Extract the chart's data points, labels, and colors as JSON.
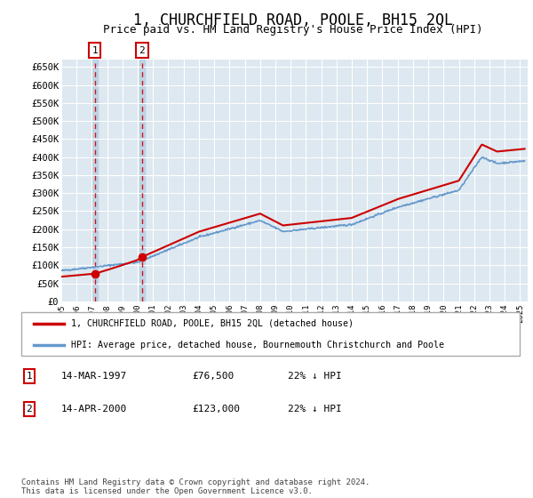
{
  "title": "1, CHURCHFIELD ROAD, POOLE, BH15 2QL",
  "subtitle": "Price paid vs. HM Land Registry's House Price Index (HPI)",
  "title_fontsize": 12,
  "subtitle_fontsize": 9,
  "ylim": [
    0,
    670000
  ],
  "yticks": [
    0,
    50000,
    100000,
    150000,
    200000,
    250000,
    300000,
    350000,
    400000,
    450000,
    500000,
    550000,
    600000,
    650000
  ],
  "ytick_labels": [
    "£0",
    "£50K",
    "£100K",
    "£150K",
    "£200K",
    "£250K",
    "£300K",
    "£350K",
    "£400K",
    "£450K",
    "£500K",
    "£550K",
    "£600K",
    "£650K"
  ],
  "xtick_years": [
    1995,
    1996,
    1997,
    1998,
    1999,
    2000,
    2001,
    2002,
    2003,
    2004,
    2005,
    2006,
    2007,
    2008,
    2009,
    2010,
    2011,
    2012,
    2013,
    2014,
    2015,
    2016,
    2017,
    2018,
    2019,
    2020,
    2021,
    2022,
    2023,
    2024,
    2025
  ],
  "sale1_x": 1997.19,
  "sale1_y": 76500,
  "sale1_label": "1",
  "sale1_date": "14-MAR-1997",
  "sale1_price": "£76,500",
  "sale1_hpi": "22% ↓ HPI",
  "sale2_x": 2000.28,
  "sale2_y": 123000,
  "sale2_label": "2",
  "sale2_date": "14-APR-2000",
  "sale2_price": "£123,000",
  "sale2_hpi": "22% ↓ HPI",
  "red_line_color": "#cc0000",
  "blue_line_color": "#6699cc",
  "bg_plot_color": "#dde8f0",
  "grid_color": "#ffffff",
  "vline_color": "#cc0000",
  "vline_shade_color": "#aac4dd",
  "legend_entry1": "1, CHURCHFIELD ROAD, POOLE, BH15 2QL (detached house)",
  "legend_entry2": "HPI: Average price, detached house, Bournemouth Christchurch and Poole",
  "footer": "Contains HM Land Registry data © Crown copyright and database right 2024.\nThis data is licensed under the Open Government Licence v3.0."
}
